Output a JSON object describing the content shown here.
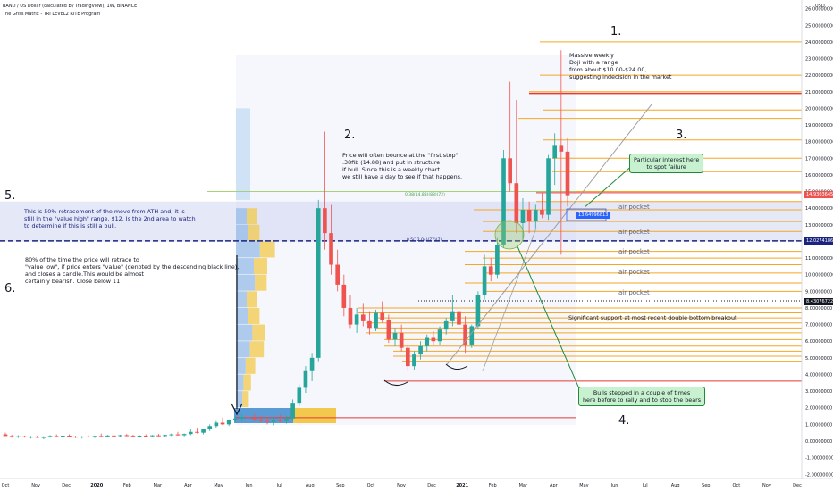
{
  "header": {
    "symbol_line": "BAND / US Dollar (calculated by TradingView), 1W, BINANCE",
    "indicator_line": "The Griss Matrix - TRI LEVEL2 RITE Program",
    "currency": "USD"
  },
  "colors": {
    "up": "#26a69a",
    "down": "#ef5350",
    "level_orange": "#f5a623",
    "level_red": "#e53935",
    "dashed_navy": "#1a237e",
    "green_box": "#c8f2cf",
    "blue_tag": "#2962ff"
  },
  "chart_data": {
    "type": "candlestick",
    "y_axis": {
      "range": [
        -2,
        26
      ],
      "ticks": [
        "26.00000000",
        "25.00000000",
        "24.00000000",
        "23.00000000",
        "22.00000000",
        "21.00000000",
        "20.00000000",
        "19.00000000",
        "18.00000000",
        "17.00000000",
        "16.00000000",
        "15.00000000",
        "14.00000000",
        "13.00000000",
        "12.00000000",
        "11.00000000",
        "10.00000000",
        "9.00000000",
        "8.00000000",
        "7.00000000",
        "6.00000000",
        "5.00000000",
        "4.00000000",
        "3.00000000",
        "2.00000000",
        "1.00000000",
        "0.00000000",
        "-1.00000000",
        "-2.00000000"
      ]
    },
    "x_axis": {
      "labels": [
        "Oct",
        "Nov",
        "Dec",
        "2020",
        "Feb",
        "Mar",
        "Apr",
        "May",
        "Jun",
        "Jul",
        "Aug",
        "Sep",
        "Oct",
        "Nov",
        "Dec",
        "2021",
        "Feb",
        "Mar",
        "Apr",
        "May",
        "Jun",
        "Jul",
        "Aug",
        "Sep",
        "Oct",
        "Nov",
        "Dec"
      ]
    },
    "candles": [
      {
        "o": 0.4,
        "h": 0.5,
        "l": 0.3,
        "c": 0.3
      },
      {
        "o": 0.3,
        "h": 0.38,
        "l": 0.2,
        "c": 0.25
      },
      {
        "o": 0.25,
        "h": 0.35,
        "l": 0.18,
        "c": 0.28
      },
      {
        "o": 0.28,
        "h": 0.33,
        "l": 0.2,
        "c": 0.22
      },
      {
        "o": 0.22,
        "h": 0.3,
        "l": 0.15,
        "c": 0.26
      },
      {
        "o": 0.26,
        "h": 0.32,
        "l": 0.18,
        "c": 0.2
      },
      {
        "o": 0.2,
        "h": 0.28,
        "l": 0.1,
        "c": 0.24
      },
      {
        "o": 0.24,
        "h": 0.35,
        "l": 0.2,
        "c": 0.3
      },
      {
        "o": 0.3,
        "h": 0.4,
        "l": 0.25,
        "c": 0.28
      },
      {
        "o": 0.28,
        "h": 0.35,
        "l": 0.2,
        "c": 0.32
      },
      {
        "o": 0.32,
        "h": 0.4,
        "l": 0.25,
        "c": 0.26
      },
      {
        "o": 0.26,
        "h": 0.32,
        "l": 0.18,
        "c": 0.22
      },
      {
        "o": 0.22,
        "h": 0.3,
        "l": 0.15,
        "c": 0.27
      },
      {
        "o": 0.27,
        "h": 0.34,
        "l": 0.2,
        "c": 0.25
      },
      {
        "o": 0.25,
        "h": 0.33,
        "l": 0.18,
        "c": 0.3
      },
      {
        "o": 0.3,
        "h": 0.45,
        "l": 0.25,
        "c": 0.28
      },
      {
        "o": 0.28,
        "h": 0.36,
        "l": 0.22,
        "c": 0.33
      },
      {
        "o": 0.33,
        "h": 0.4,
        "l": 0.26,
        "c": 0.3
      },
      {
        "o": 0.3,
        "h": 0.38,
        "l": 0.22,
        "c": 0.35
      },
      {
        "o": 0.35,
        "h": 0.42,
        "l": 0.28,
        "c": 0.31
      },
      {
        "o": 0.31,
        "h": 0.38,
        "l": 0.24,
        "c": 0.27
      },
      {
        "o": 0.27,
        "h": 0.35,
        "l": 0.2,
        "c": 0.32
      },
      {
        "o": 0.32,
        "h": 0.4,
        "l": 0.26,
        "c": 0.29
      },
      {
        "o": 0.29,
        "h": 0.36,
        "l": 0.22,
        "c": 0.34
      },
      {
        "o": 0.34,
        "h": 0.42,
        "l": 0.28,
        "c": 0.3
      },
      {
        "o": 0.3,
        "h": 0.38,
        "l": 0.22,
        "c": 0.36
      },
      {
        "o": 0.36,
        "h": 0.45,
        "l": 0.3,
        "c": 0.4
      },
      {
        "o": 0.4,
        "h": 0.55,
        "l": 0.32,
        "c": 0.35
      },
      {
        "o": 0.35,
        "h": 0.45,
        "l": 0.28,
        "c": 0.42
      },
      {
        "o": 0.42,
        "h": 0.7,
        "l": 0.35,
        "c": 0.55
      },
      {
        "o": 0.55,
        "h": 0.8,
        "l": 0.45,
        "c": 0.5
      },
      {
        "o": 0.5,
        "h": 0.75,
        "l": 0.4,
        "c": 0.7
      },
      {
        "o": 0.7,
        "h": 1.0,
        "l": 0.6,
        "c": 0.9
      },
      {
        "o": 0.9,
        "h": 1.2,
        "l": 0.8,
        "c": 1.1
      },
      {
        "o": 1.1,
        "h": 1.4,
        "l": 0.95,
        "c": 1.0
      },
      {
        "o": 1.0,
        "h": 1.3,
        "l": 0.9,
        "c": 1.25
      },
      {
        "o": 1.25,
        "h": 1.5,
        "l": 1.1,
        "c": 1.35
      },
      {
        "o": 1.35,
        "h": 1.6,
        "l": 1.2,
        "c": 1.45
      },
      {
        "o": 1.45,
        "h": 1.7,
        "l": 1.3,
        "c": 1.4
      },
      {
        "o": 1.4,
        "h": 1.65,
        "l": 1.2,
        "c": 1.3
      },
      {
        "o": 1.3,
        "h": 1.55,
        "l": 1.1,
        "c": 1.2
      },
      {
        "o": 1.2,
        "h": 1.45,
        "l": 1.0,
        "c": 1.15
      },
      {
        "o": 1.15,
        "h": 1.4,
        "l": 0.95,
        "c": 1.25
      },
      {
        "o": 1.25,
        "h": 1.6,
        "l": 1.1,
        "c": 1.2
      },
      {
        "o": 1.2,
        "h": 1.5,
        "l": 1.05,
        "c": 1.35
      },
      {
        "o": 1.35,
        "h": 2.5,
        "l": 1.2,
        "c": 2.3
      },
      {
        "o": 2.3,
        "h": 3.4,
        "l": 2.1,
        "c": 3.2
      },
      {
        "o": 3.2,
        "h": 4.5,
        "l": 2.9,
        "c": 4.2
      },
      {
        "o": 4.2,
        "h": 5.3,
        "l": 3.6,
        "c": 5.0
      },
      {
        "o": 5.0,
        "h": 14.5,
        "l": 4.8,
        "c": 14.0
      },
      {
        "o": 14.0,
        "h": 18.6,
        "l": 11.5,
        "c": 12.5
      },
      {
        "o": 12.5,
        "h": 14.2,
        "l": 10.0,
        "c": 10.6
      },
      {
        "o": 10.6,
        "h": 11.5,
        "l": 9.0,
        "c": 9.4
      },
      {
        "o": 9.4,
        "h": 10.0,
        "l": 7.5,
        "c": 8.0
      },
      {
        "o": 8.0,
        "h": 8.8,
        "l": 6.8,
        "c": 7.0
      },
      {
        "o": 7.0,
        "h": 8.0,
        "l": 6.5,
        "c": 7.6
      },
      {
        "o": 7.6,
        "h": 8.3,
        "l": 6.9,
        "c": 7.2
      },
      {
        "o": 7.2,
        "h": 7.8,
        "l": 6.4,
        "c": 6.8
      },
      {
        "o": 6.8,
        "h": 7.9,
        "l": 6.6,
        "c": 7.7
      },
      {
        "o": 7.7,
        "h": 8.4,
        "l": 7.1,
        "c": 7.3
      },
      {
        "o": 7.3,
        "h": 7.6,
        "l": 5.9,
        "c": 6.1
      },
      {
        "o": 6.1,
        "h": 6.8,
        "l": 5.7,
        "c": 6.5
      },
      {
        "o": 6.5,
        "h": 7.0,
        "l": 5.4,
        "c": 5.6
      },
      {
        "o": 5.6,
        "h": 5.8,
        "l": 4.2,
        "c": 4.5
      },
      {
        "o": 4.5,
        "h": 5.4,
        "l": 4.3,
        "c": 5.2
      },
      {
        "o": 5.2,
        "h": 6.0,
        "l": 4.9,
        "c": 5.7
      },
      {
        "o": 5.7,
        "h": 6.4,
        "l": 5.4,
        "c": 6.2
      },
      {
        "o": 6.2,
        "h": 6.6,
        "l": 5.8,
        "c": 6.0
      },
      {
        "o": 6.0,
        "h": 6.9,
        "l": 5.8,
        "c": 6.7
      },
      {
        "o": 6.7,
        "h": 7.4,
        "l": 6.4,
        "c": 7.2
      },
      {
        "o": 7.2,
        "h": 8.8,
        "l": 6.9,
        "c": 7.8
      },
      {
        "o": 7.8,
        "h": 8.2,
        "l": 6.8,
        "c": 7.0
      },
      {
        "o": 7.0,
        "h": 7.5,
        "l": 5.3,
        "c": 5.8
      },
      {
        "o": 5.8,
        "h": 7.0,
        "l": 5.6,
        "c": 6.9
      },
      {
        "o": 6.9,
        "h": 9.0,
        "l": 6.7,
        "c": 8.8
      },
      {
        "o": 8.8,
        "h": 11.2,
        "l": 8.5,
        "c": 10.5
      },
      {
        "o": 10.5,
        "h": 11.0,
        "l": 9.6,
        "c": 10.0
      },
      {
        "o": 10.0,
        "h": 12.2,
        "l": 9.8,
        "c": 11.8
      },
      {
        "o": 11.8,
        "h": 17.5,
        "l": 11.6,
        "c": 17.0
      },
      {
        "o": 17.0,
        "h": 21.6,
        "l": 15.0,
        "c": 15.5
      },
      {
        "o": 15.5,
        "h": 20.5,
        "l": 12.5,
        "c": 13.1
      },
      {
        "o": 13.1,
        "h": 14.6,
        "l": 12.0,
        "c": 13.9
      },
      {
        "o": 13.9,
        "h": 14.4,
        "l": 12.5,
        "c": 13.2
      },
      {
        "o": 13.2,
        "h": 14.2,
        "l": 12.8,
        "c": 13.9
      },
      {
        "o": 13.9,
        "h": 14.9,
        "l": 13.4,
        "c": 13.6
      },
      {
        "o": 13.6,
        "h": 17.2,
        "l": 13.3,
        "c": 17.0
      },
      {
        "o": 17.0,
        "h": 18.5,
        "l": 15.4,
        "c": 17.8
      },
      {
        "o": 17.8,
        "h": 23.5,
        "l": 11.2,
        "c": 17.4
      },
      {
        "o": 17.4,
        "h": 18.2,
        "l": 14.1,
        "c": 14.78
      }
    ],
    "price_tags": [
      {
        "value": "14.93036456",
        "color": "#ef5350"
      },
      {
        "value": "12.02741862",
        "color": "#1a237e"
      },
      {
        "value": "8.43076722",
        "color": "#131722"
      }
    ],
    "box_tag": "13.64996813",
    "level_labels": [
      "0.38(14.88)(88)(72)",
      "0.5(12.04)(77)(7)"
    ]
  },
  "annotations": {
    "n1": "1.",
    "n2": "2.",
    "n3": "3.",
    "n4": "4.",
    "n5": "5.",
    "n6": "6.",
    "doji": "Massive weekly\nDoji with a range\nfrom about $10.00-$24.00,\nsuggesting indecision in the market",
    "first_stop": "Price will often bounce at the \"first stop\"\n.38fib (14.88) and put in structure\nif bull. Since this is a weekly chart\nwe still have a day to see if that happens.",
    "retrace50": "This is 50% retracement of the move from ATH and, it is\nstill in the \"value high\" range. $12. Is the 2nd area to watch\nto determine if this is still a bull.",
    "value_low": "80% of the time the price will retrace to\n\"value low\", if price enters \"value\" (denoted by the descending black line),\nand closes a candle.This would be almost\ncertainly bearish. Close below 11",
    "particular": "Particular interest here\nto spot failure",
    "bulls": "Bulls stepped in a couple of times\nhere before to rally and to stop the bears",
    "support": "Significant support at most recent double bottom breakout",
    "air_pockets": [
      "air pocket",
      "air pocket",
      "air pocket",
      "air pocket",
      "air pocket"
    ]
  }
}
